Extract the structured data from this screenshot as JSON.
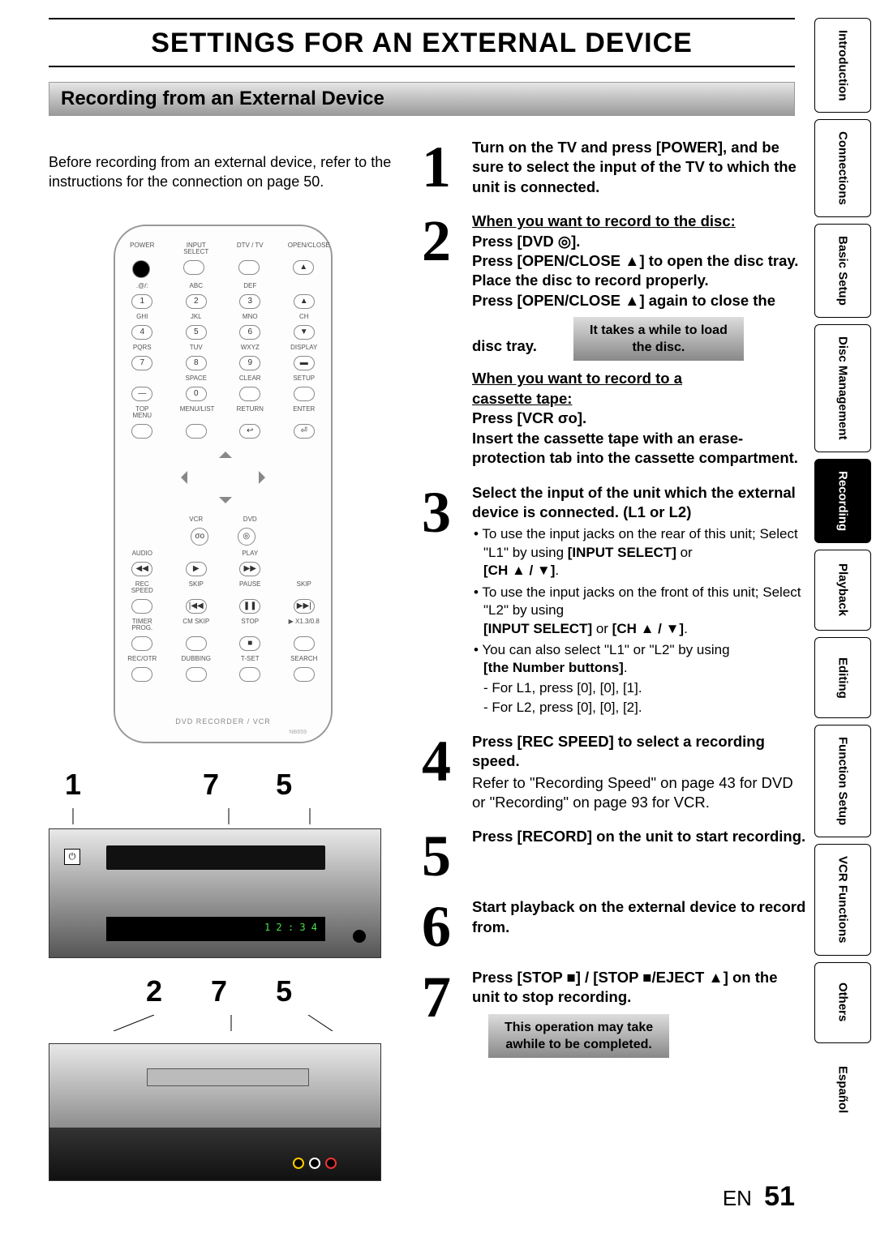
{
  "title": "SETTINGS FOR AN EXTERNAL DEVICE",
  "section_header": "Recording from an External Device",
  "intro_line1": "Before recording from an external device, refer to the",
  "intro_line2": "instructions for the connection on page 50.",
  "remote": {
    "row1": [
      "POWER",
      "INPUT SELECT",
      "DTV / TV",
      "OPEN/CLOSE"
    ],
    "row2lbl": [
      ".@/:",
      "ABC",
      "DEF",
      ""
    ],
    "row2btn": [
      "1",
      "2",
      "3",
      "▲"
    ],
    "row3lbl": [
      "GHI",
      "JKL",
      "MNO",
      "CH"
    ],
    "row3btn": [
      "4",
      "5",
      "6",
      ""
    ],
    "row4lbl": [
      "PQRS",
      "TUV",
      "WXYZ",
      "DISPLAY"
    ],
    "row4btn": [
      "7",
      "8",
      "9",
      "▬"
    ],
    "row5lbl": [
      "",
      "SPACE",
      "CLEAR",
      "SETUP"
    ],
    "row5btn": [
      "—",
      "0",
      "",
      ""
    ],
    "row6lbl": [
      "TOP MENU",
      "MENU/LIST",
      "RETURN",
      "ENTER"
    ],
    "row7lbl": [
      "",
      "VCR",
      "DVD",
      ""
    ],
    "row8lbl": [
      "AUDIO",
      "",
      "PLAY",
      ""
    ],
    "row9lbl": [
      "REC SPEED",
      "SKIP",
      "PAUSE",
      "SKIP"
    ],
    "row10lbl": [
      "TIMER PROG.",
      "CM SKIP",
      "STOP",
      "▶ X1.3/0.8"
    ],
    "row11lbl": [
      "REC/OTR",
      "DUBBING",
      "T-SET",
      "SEARCH"
    ],
    "bottom": "DVD RECORDER / VCR",
    "nb": "NB659"
  },
  "device_callouts_top": [
    "1",
    "7",
    "5"
  ],
  "device_callouts_bottom": [
    "2",
    "7",
    "5"
  ],
  "vcr_display": "1 2 : 3 4",
  "steps": {
    "s1": {
      "num": "1",
      "text": "Turn on the TV and press [POWER], and be sure to select the input of the TV to which the unit is connected."
    },
    "s2": {
      "num": "2",
      "head_ul": "When you want to record to the disc:",
      "press_dvd": "Press [DVD ",
      "press_dvd_tail": "].",
      "l1": "Press [OPEN/CLOSE ▲] to open the disc tray. Place the disc to record properly.",
      "l2": "Press [OPEN/CLOSE ▲] again to close the disc tray.",
      "note1": "It takes a while to load",
      "note2": "the disc.",
      "cassette_ul1": "When you want to record to a",
      "cassette_ul2": "cassette tape:",
      "press_vcr": "Press [VCR ",
      "press_vcr_tail": "].",
      "cassette_body": "Insert the cassette tape with an erase-protection tab into the cassette compartment."
    },
    "s3": {
      "num": "3",
      "head": "Select the input of the unit which the external device is connected. (L1 or L2)",
      "b1a": "To use the input jacks on the rear of this unit; Select \"L1\" by using ",
      "b1b": "[INPUT SELECT]",
      "b1c": " or ",
      "b1d": "[CH ▲ / ▼]",
      "b1e": ".",
      "b2a": "To use the input jacks on the front of this unit; Select \"L2\" by using",
      "b2b": "[INPUT SELECT]",
      "b2c": " or ",
      "b2d": "[CH ▲ / ▼]",
      "b2e": ".",
      "b3a": "You can also select \"L1\" or \"L2\" by using ",
      "b3b": "[the Number buttons]",
      "b3c": ".",
      "l1": "- For L1, press [0], [0], [1].",
      "l2": "- For L2, press [0], [0], [2]."
    },
    "s4": {
      "num": "4",
      "head": "Press [REC SPEED] to select a recording speed.",
      "sub": "Refer to \"Recording Speed\" on page 43 for DVD or \"Recording\" on page 93 for VCR."
    },
    "s5": {
      "num": "5",
      "head": "Press [RECORD] on the unit to start recording."
    },
    "s6": {
      "num": "6",
      "head": "Start playback on the external device to record from."
    },
    "s7": {
      "num": "7",
      "head": "Press [STOP ■] / [STOP ■/EJECT ▲] on the unit to stop recording.",
      "note1": "This operation may take",
      "note2": "awhile to be completed."
    }
  },
  "footer_lang": "EN",
  "footer_page": "51",
  "tabs": [
    {
      "label": "Introduction",
      "active": false
    },
    {
      "label": "Connections",
      "active": false
    },
    {
      "label": "Basic Setup",
      "active": false
    },
    {
      "label": "Disc Management",
      "active": false
    },
    {
      "label": "Recording",
      "active": true
    },
    {
      "label": "Playback",
      "active": false
    },
    {
      "label": "Editing",
      "active": false
    },
    {
      "label": "Function Setup",
      "active": false
    },
    {
      "label": "VCR Functions",
      "active": false
    },
    {
      "label": "Others",
      "active": false
    },
    {
      "label": "Español",
      "active": false,
      "noborder": true
    }
  ]
}
